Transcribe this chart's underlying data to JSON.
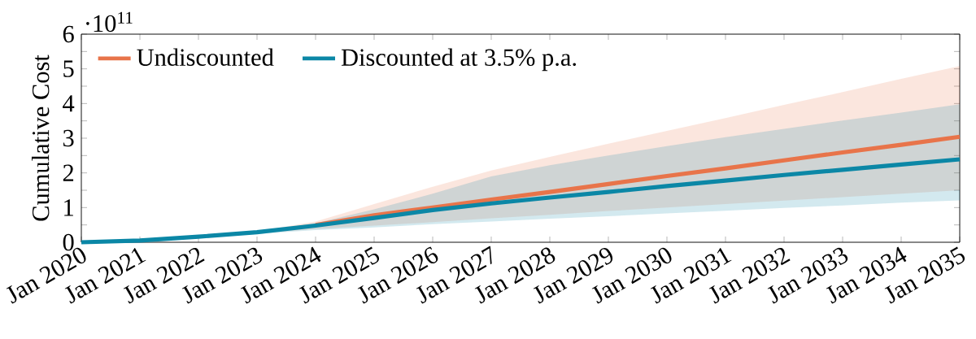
{
  "chart_data": {
    "type": "line",
    "ylabel": "Cumulative Cost",
    "annotations": [
      "·10$^{11}$"
    ],
    "x": [
      "2020-01",
      "2021-01",
      "2022-01",
      "2023-01",
      "2024-01",
      "2025-01",
      "2026-01",
      "2027-01",
      "2028-01",
      "2029-01",
      "2030-01",
      "2031-01",
      "2032-01",
      "2033-01",
      "2034-01",
      "2035-01"
    ],
    "series": [
      {
        "name": "Undiscounted",
        "color": "#e8744a",
        "values": [
          null,
          null,
          null,
          null,
          0.5,
          0.78,
          1.0,
          1.23,
          1.45,
          1.68,
          1.91,
          2.13,
          2.36,
          2.59,
          2.81,
          3.04
        ],
        "lower": [
          0,
          0.05,
          0.16,
          0.26,
          0.38,
          0.48,
          0.58,
          0.69,
          0.79,
          0.9,
          1.0,
          1.1,
          1.2,
          1.3,
          1.4,
          1.5
        ],
        "upper": [
          0,
          0.05,
          0.16,
          0.31,
          0.6,
          1.1,
          1.6,
          2.07,
          2.46,
          2.84,
          3.21,
          3.58,
          3.96,
          4.33,
          4.71,
          5.08
        ]
      },
      {
        "name": "Discounted at 3.5% p.a.",
        "color": "#0b87a6",
        "values": [
          0,
          0.05,
          0.16,
          0.29,
          0.48,
          0.7,
          0.93,
          1.12,
          1.29,
          1.45,
          1.62,
          1.78,
          1.94,
          2.09,
          2.24,
          2.39
        ],
        "lower": [
          0,
          0.05,
          0.16,
          0.24,
          0.35,
          0.43,
          0.52,
          0.6,
          0.68,
          0.75,
          0.83,
          0.91,
          0.99,
          1.06,
          1.14,
          1.21
        ],
        "upper": [
          0,
          0.05,
          0.16,
          0.3,
          0.55,
          0.95,
          1.4,
          1.9,
          2.22,
          2.5,
          2.77,
          3.03,
          3.27,
          3.51,
          3.74,
          3.98
        ]
      }
    ],
    "xlim": [
      "2020-01",
      "2035-01"
    ],
    "xticks": [
      {
        "value": "2020-01",
        "label": "Jan 2020"
      },
      {
        "value": "2021-01",
        "label": "Jan 2021"
      },
      {
        "value": "2022-01",
        "label": "Jan 2022"
      },
      {
        "value": "2023-01",
        "label": "Jan 2023"
      },
      {
        "value": "2024-01",
        "label": "Jan 2024"
      },
      {
        "value": "2025-01",
        "label": "Jan 2025"
      },
      {
        "value": "2026-01",
        "label": "Jan 2026"
      },
      {
        "value": "2027-01",
        "label": "Jan 2027"
      },
      {
        "value": "2028-01",
        "label": "Jan 2028"
      },
      {
        "value": "2029-01",
        "label": "Jan 2029"
      },
      {
        "value": "2030-01",
        "label": "Jan 2030"
      },
      {
        "value": "2031-01",
        "label": "Jan 2031"
      },
      {
        "value": "2032-01",
        "label": "Jan 2032"
      },
      {
        "value": "2033-01",
        "label": "Jan 2033"
      },
      {
        "value": "2034-01",
        "label": "Jan 2034"
      },
      {
        "value": "2035-01",
        "label": "Jan 2035"
      }
    ],
    "ylim": [
      0,
      6
    ],
    "yticks": [
      0,
      {
        "value": 0.5,
        "label": null
      },
      1,
      {
        "value": 1.5,
        "label": null
      },
      2,
      {
        "value": 2.5,
        "label": null
      },
      3,
      {
        "value": 3.5,
        "label": null
      },
      4,
      {
        "value": 4.5,
        "label": null
      },
      5,
      {
        "value": 5.5,
        "label": null
      },
      6
    ],
    "grid": false,
    "legend": "top left",
    "marker": "none",
    "line_style": "solid"
  }
}
